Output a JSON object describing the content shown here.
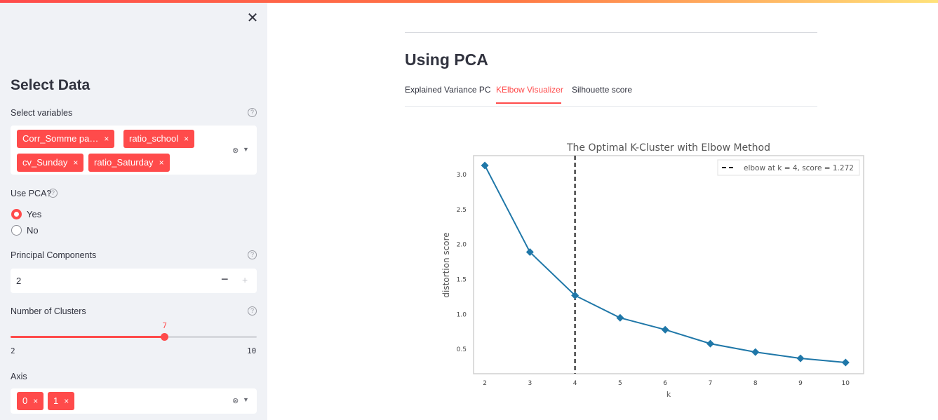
{
  "sidebar": {
    "close_glyph": "✕",
    "title": "Select Data",
    "select_variables": {
      "label": "Select variables",
      "chips": [
        "Corr_Somme pa…",
        "ratio_school",
        "cv_Sunday",
        "ratio_Saturday"
      ]
    },
    "use_pca": {
      "label": "Use PCA?",
      "options": [
        "Yes",
        "No"
      ],
      "selected": "Yes"
    },
    "principal_components": {
      "label": "Principal Components",
      "value": "2",
      "minus": "−",
      "plus": "+"
    },
    "clusters": {
      "label": "Number of Clusters",
      "value": "7",
      "min": "2",
      "max": "10",
      "fraction": 0.625
    },
    "axis": {
      "label": "Axis",
      "chips": [
        "0",
        "1"
      ]
    },
    "chip_remove_glyph": "×",
    "help_glyph": "?"
  },
  "main": {
    "title": "Using PCA",
    "tabs": [
      "Explained Variance PC",
      "KElbow Visualizer",
      "Silhouette score"
    ],
    "active_tab": "KElbow Visualizer"
  },
  "colors": {
    "accent": "#ff4b4b",
    "sidebar_bg": "#f0f2f6",
    "line": "#1f77a8",
    "elbow": "#111111"
  },
  "chart_data": {
    "type": "line",
    "title": "The Optimal K-Cluster with Elbow Method",
    "xlabel": "k",
    "ylabel": "distortion score",
    "x": [
      2,
      3,
      4,
      5,
      6,
      7,
      8,
      9,
      10
    ],
    "series": [
      {
        "values": [
          3.13,
          1.89,
          1.27,
          0.95,
          0.78,
          0.58,
          0.46,
          0.37,
          0.31
        ]
      }
    ],
    "x_ticks": [
      "2",
      "3",
      "4",
      "5",
      "6",
      "7",
      "8",
      "9",
      "10"
    ],
    "y_ticks": [
      "0.5",
      "1.0",
      "1.5",
      "2.0",
      "2.5",
      "3.0"
    ],
    "y_tick_values": [
      0.5,
      1.0,
      1.5,
      2.0,
      2.5,
      3.0
    ],
    "xlim": [
      1.75,
      10.4
    ],
    "ylim": [
      0.15,
      3.27
    ],
    "elbow_k": 4,
    "legend": {
      "text": "elbow at k = 4, score = 1.272",
      "position": "top-right"
    },
    "marker": "diamond",
    "grid": false
  }
}
